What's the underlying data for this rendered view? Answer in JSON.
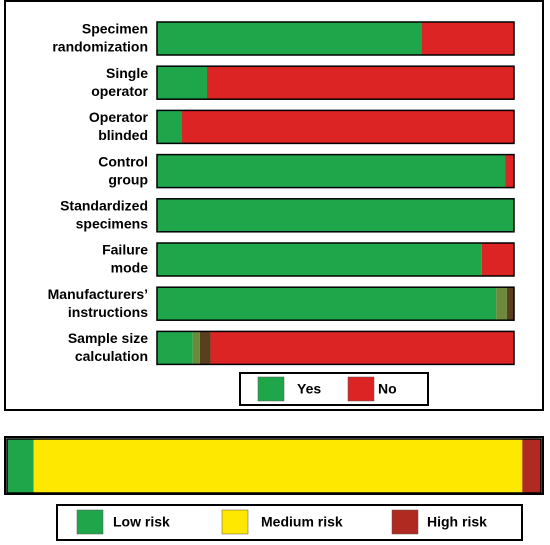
{
  "chart_data": [
    {
      "type": "stacked-barh",
      "categories": [
        [
          "Specimen",
          "randomization"
        ],
        [
          "Single",
          "operator"
        ],
        [
          "Operator",
          "blinded"
        ],
        [
          "Control",
          "group"
        ],
        [
          "Standardized",
          "specimens"
        ],
        [
          "Failure",
          "mode"
        ],
        [
          "Manufacturers’",
          "instructions"
        ],
        [
          "Sample size",
          "calculation"
        ]
      ],
      "xlim": [
        0,
        100
      ],
      "series": [
        {
          "name": "Yes",
          "color": "#1fa64a",
          "values": [
            74,
            14,
            7,
            97.5,
            100,
            91,
            95,
            10
          ]
        },
        {
          "color": "#6b8a3a",
          "values": [
            0,
            0,
            0,
            0,
            0,
            0,
            3,
            2
          ]
        },
        {
          "color": "#5a3f1e",
          "values": [
            0,
            0,
            0,
            0,
            0,
            0,
            2,
            3
          ]
        },
        {
          "name": "No",
          "color": "#dd2424",
          "values": [
            26,
            86,
            93,
            2.5,
            0,
            9,
            0,
            85
          ]
        }
      ]
    },
    {
      "type": "stacked-barh",
      "categories": [
        null
      ],
      "xlim": [
        0,
        100
      ],
      "series": [
        {
          "name": "Low risk",
          "color": "#1fa64a",
          "values": [
            5
          ]
        },
        {
          "name": "Medium risk",
          "color": "#ffe800",
          "values": [
            91.5
          ]
        },
        {
          "name": "High risk",
          "color": "#b02a22",
          "values": [
            3.5
          ]
        }
      ]
    }
  ]
}
